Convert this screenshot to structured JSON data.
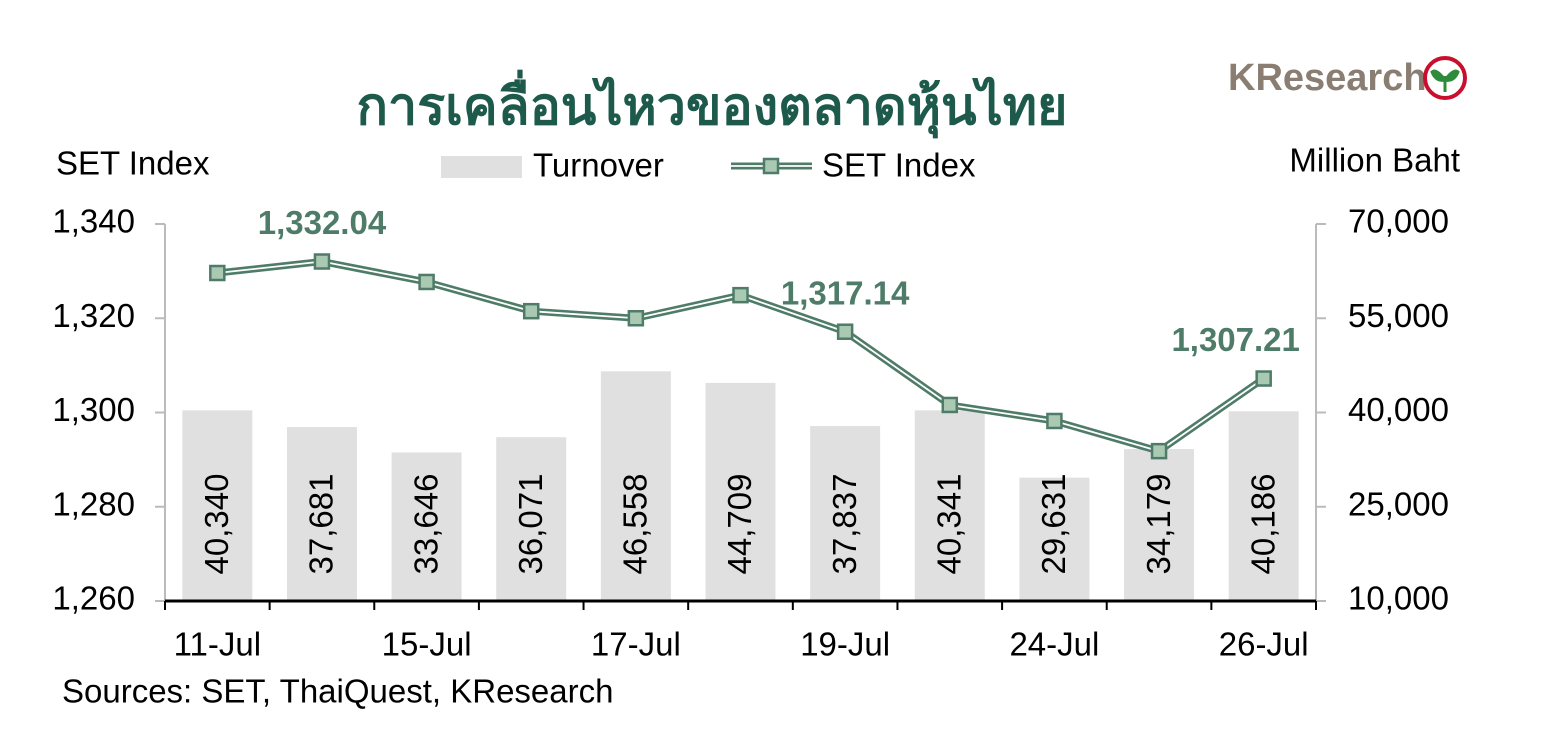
{
  "chart_data": {
    "type": "bar_line",
    "title": "การเคลื่อนไหวของตลาดหุ้นไทย",
    "logo_text": "KResearch",
    "y_label": "SET Index",
    "y2_label": "Million Baht",
    "source": "Sources: SET, ThaiQuest, KResearch",
    "categories": [
      "11-Jul",
      null,
      "15-Jul",
      null,
      "17-Jul",
      null,
      "19-Jul",
      null,
      "24-Jul",
      null,
      "26-Jul"
    ],
    "series": [
      {
        "name": "Turnover",
        "type": "bar",
        "axis": "y2",
        "color": "#e0e0e0",
        "values": [
          40340,
          37681,
          33646,
          36071,
          46558,
          44709,
          37837,
          40341,
          29631,
          34179,
          40186
        ],
        "value_labels": [
          "40,340",
          "37,681",
          "33,646",
          "36,071",
          "46,558",
          "44,709",
          "37,837",
          "40,341",
          "29,631",
          "34,179",
          "40,186"
        ]
      },
      {
        "name": "SET Index",
        "type": "line",
        "color": "#4e7c68",
        "marker_color": "#a9c9b3",
        "values": [
          1329.6,
          1332.04,
          1327.7,
          1321.5,
          1320.0,
          1324.9,
          1317.14,
          1301.6,
          1298.2,
          1291.8,
          1307.21
        ],
        "value_labels": [
          null,
          "1,332.04",
          null,
          null,
          null,
          null,
          "1,317.14",
          null,
          null,
          null,
          "1,307.21"
        ]
      }
    ],
    "ylim": [
      1260,
      1340
    ],
    "yticks": [
      {
        "value": 1260,
        "label": "1,260"
      },
      {
        "value": 1280,
        "label": "1,280"
      },
      {
        "value": 1300,
        "label": "1,300"
      },
      {
        "value": 1320,
        "label": "1,320"
      },
      {
        "value": 1340,
        "label": "1,340"
      }
    ],
    "y2lim": [
      10000,
      70000
    ],
    "y2ticks": [
      {
        "value": 10000,
        "label": "10,000"
      },
      {
        "value": 25000,
        "label": "25,000"
      },
      {
        "value": 40000,
        "label": "40,000"
      },
      {
        "value": 55000,
        "label": "55,000"
      },
      {
        "value": 70000,
        "label": "70,000"
      }
    ],
    "grid": false
  }
}
